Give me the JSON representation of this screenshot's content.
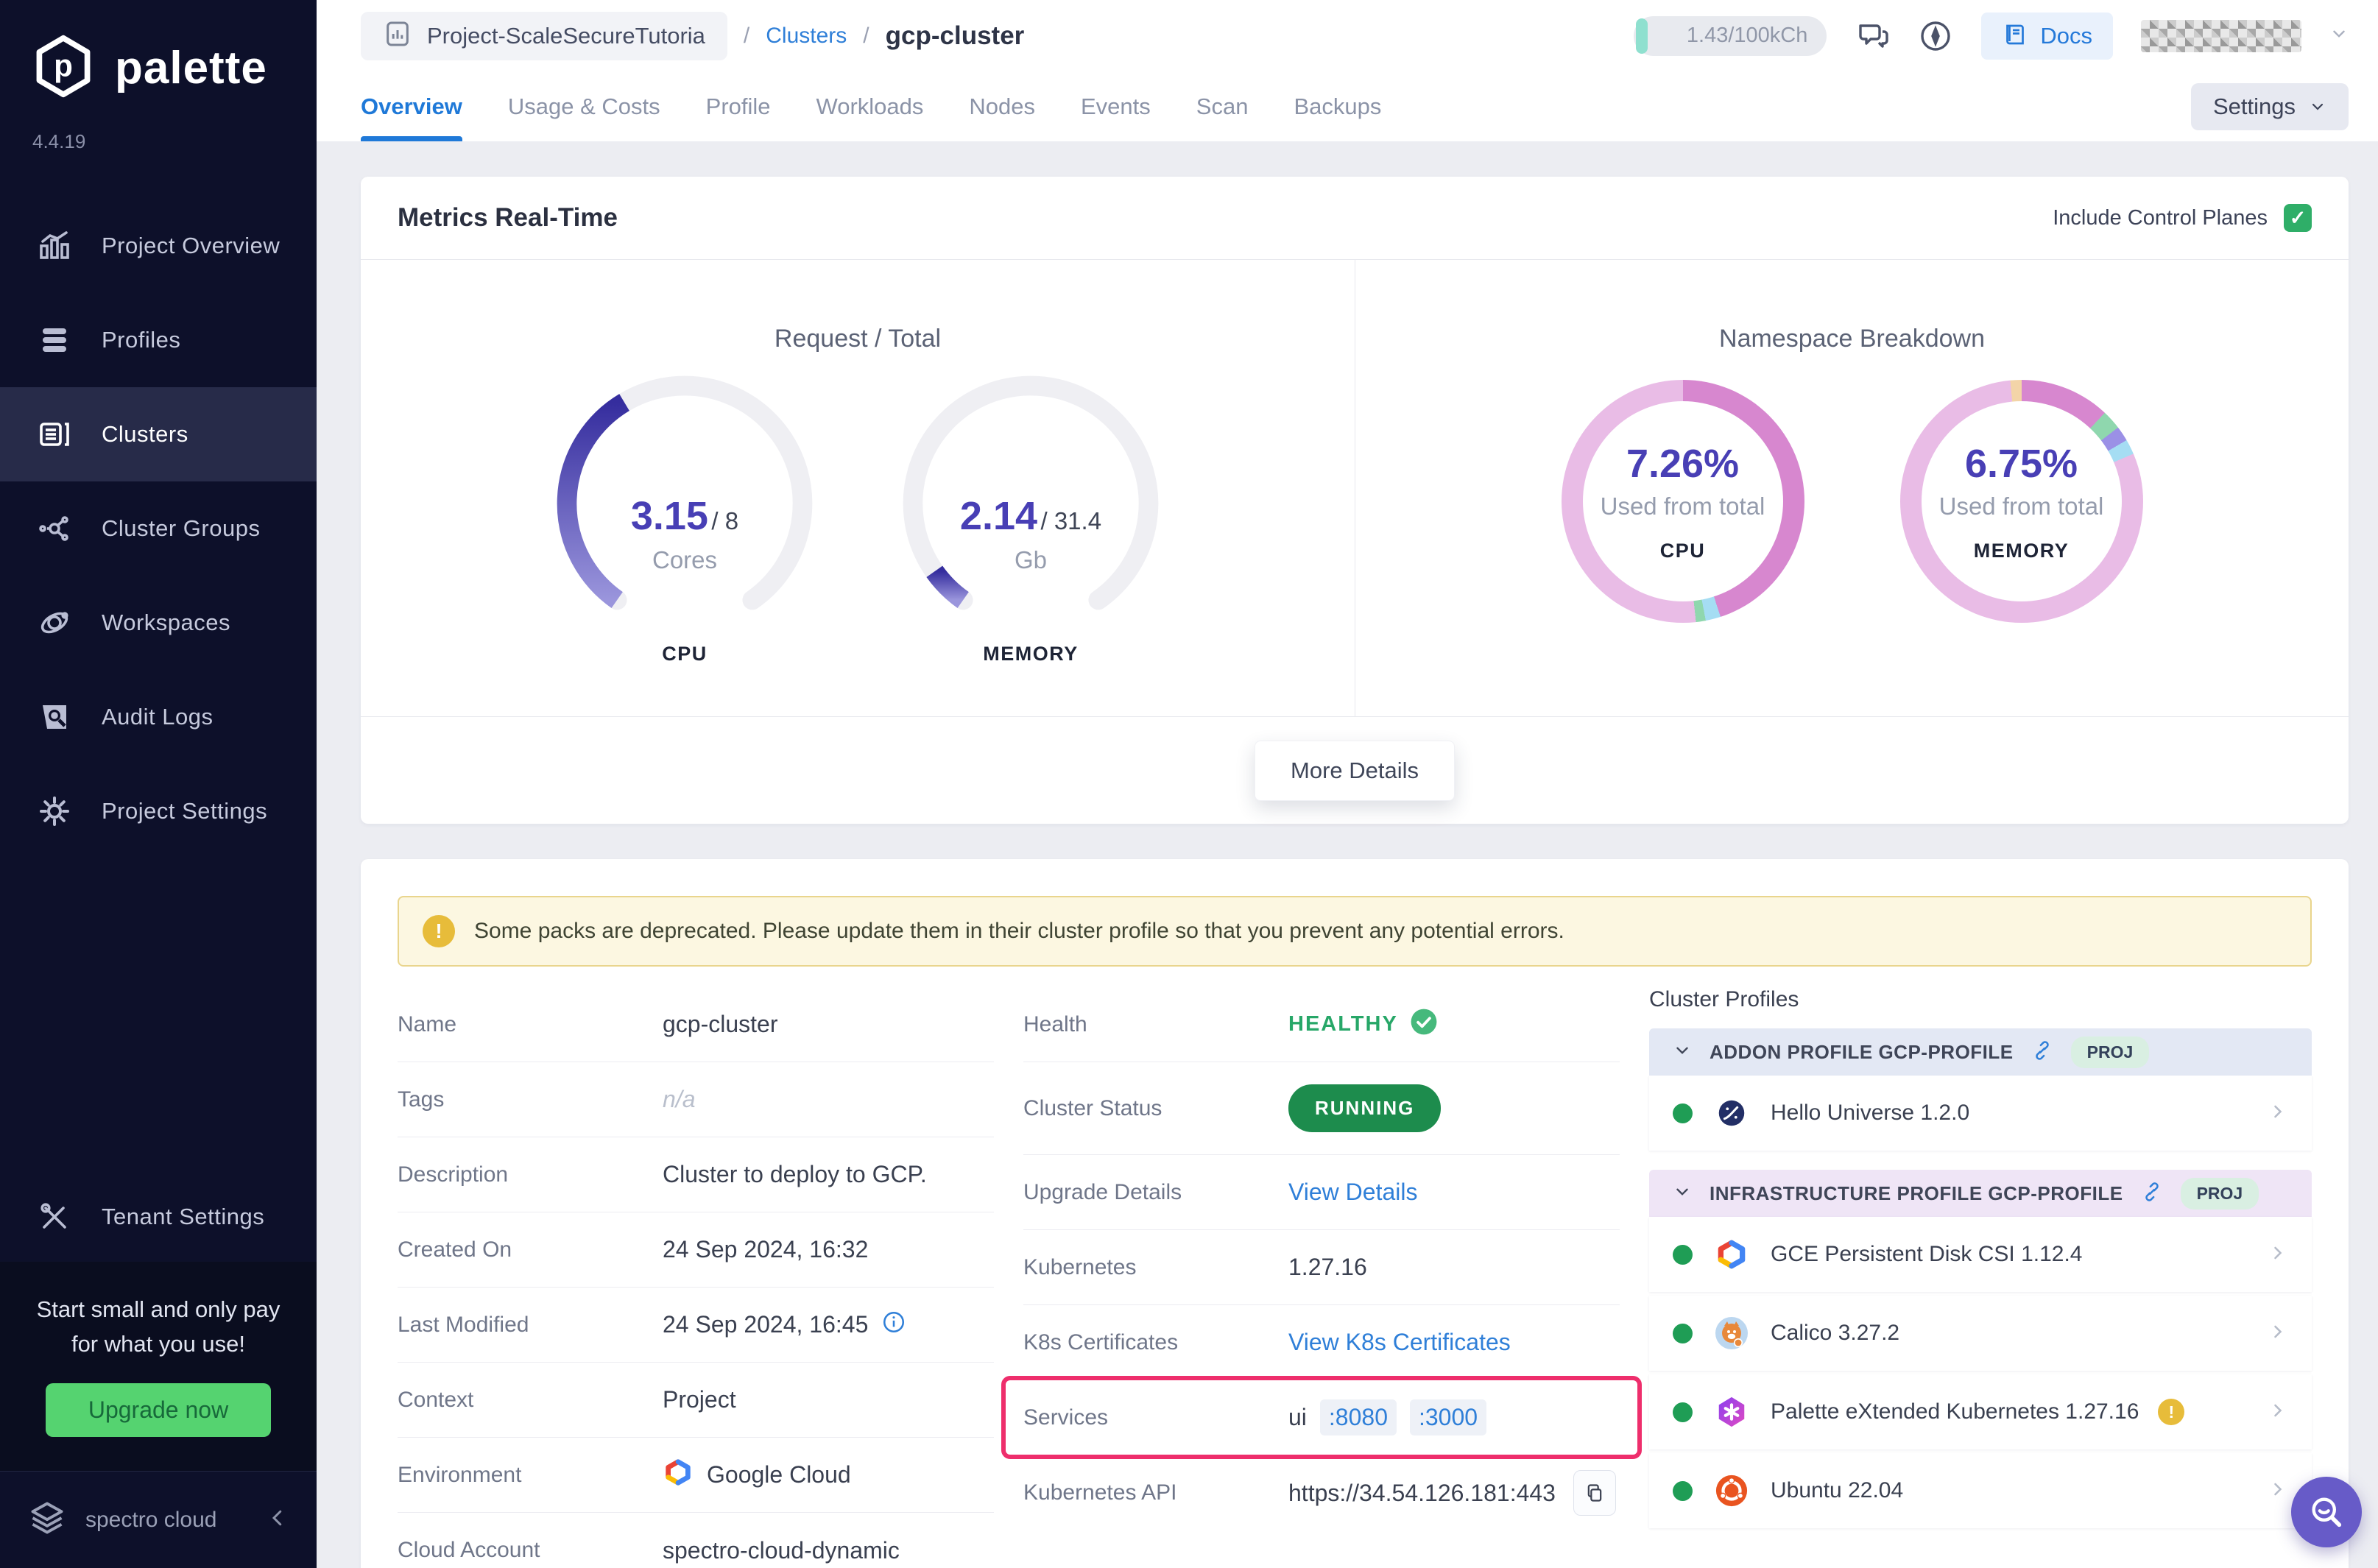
{
  "app": {
    "name": "palette",
    "version": "4.4.19",
    "brand": "spectro cloud"
  },
  "sidebar": {
    "items": [
      {
        "label": "Project Overview",
        "icon": "bar-chart-icon",
        "active": false
      },
      {
        "label": "Profiles",
        "icon": "layers-icon",
        "active": false
      },
      {
        "label": "Clusters",
        "icon": "server-icon",
        "active": true
      },
      {
        "label": "Cluster Groups",
        "icon": "network-icon",
        "active": false
      },
      {
        "label": "Workspaces",
        "icon": "orbit-icon",
        "active": false
      },
      {
        "label": "Audit Logs",
        "icon": "audit-icon",
        "active": false
      },
      {
        "label": "Project Settings",
        "icon": "gear-icon",
        "active": false
      }
    ],
    "tenant_settings": "Tenant Settings",
    "promo": {
      "line1": "Start small and only pay",
      "line2": "for what you use!",
      "button": "Upgrade now"
    }
  },
  "header": {
    "project": "Project-ScaleSecureTutoria",
    "breadcrumb_section": "Clusters",
    "breadcrumb_current": "gcp-cluster",
    "usage": "1.43/100kCh",
    "docs": "Docs"
  },
  "tabs": {
    "labels": [
      "Overview",
      "Usage & Costs",
      "Profile",
      "Workloads",
      "Nodes",
      "Events",
      "Scan",
      "Backups"
    ],
    "active": "Overview",
    "settings": "Settings"
  },
  "metrics": {
    "title": "Metrics Real-Time",
    "include_control_planes": "Include Control Planes",
    "checkbox_checked": true,
    "gauges_title": "Request / Total",
    "donuts_title": "Namespace Breakdown",
    "more_details": "More Details"
  },
  "chart_data": [
    {
      "id": "gauge-cpu",
      "type": "gauge",
      "label": "CPU",
      "value": 3.15,
      "total": 8,
      "total_text": "/ 8",
      "unit": "Cores",
      "arc_span_deg": 290,
      "track_color": "#efeff3",
      "fill_top": "#352d9e",
      "fill_bottom": "#9a95dc"
    },
    {
      "id": "gauge-mem",
      "type": "gauge",
      "label": "MEMORY",
      "value": 2.14,
      "total": 31.4,
      "total_text": "/ 31.4",
      "unit": "Gb",
      "arc_span_deg": 290,
      "track_color": "#efeff3",
      "fill_top": "#352d9e",
      "fill_bottom": "#9a95dc"
    },
    {
      "id": "donut-cpu",
      "type": "donut",
      "label": "CPU",
      "percent_text": "7.26%",
      "subtitle": "Used from total",
      "slices": [
        {
          "color": "#d787cf",
          "pct": 45
        },
        {
          "color": "#a5ddf3",
          "pct": 2
        },
        {
          "color": "#8fd7ae",
          "pct": 1.3
        },
        {
          "color": "#e9bce6",
          "pct": 51.7
        }
      ]
    },
    {
      "id": "donut-mem",
      "type": "donut",
      "label": "MEMORY",
      "percent_text": "6.75%",
      "subtitle": "Used from total",
      "slices": [
        {
          "color": "#d787cf",
          "pct": 12
        },
        {
          "color": "#8fd7ae",
          "pct": 2.6
        },
        {
          "color": "#9b90e6",
          "pct": 2
        },
        {
          "color": "#a5ddf3",
          "pct": 2
        },
        {
          "color": "#e9bce6",
          "pct": 79.9
        },
        {
          "color": "#f3d4a8",
          "pct": 1.5
        }
      ]
    }
  ],
  "details": {
    "warning": "Some packs are deprecated. Please update them in their cluster profile so that you prevent any potential errors.",
    "left_rows": [
      {
        "label": "Name",
        "value": "gcp-cluster"
      },
      {
        "label": "Tags",
        "value": "n/a"
      },
      {
        "label": "Description",
        "value": "Cluster to deploy to GCP."
      },
      {
        "label": "Created On",
        "value": "24 Sep 2024, 16:32"
      },
      {
        "label": "Last Modified",
        "value": "24 Sep 2024, 16:45"
      },
      {
        "label": "Context",
        "value": "Project"
      },
      {
        "label": "Environment",
        "value": "Google Cloud"
      },
      {
        "label": "Cloud Account",
        "value": "spectro-cloud-dynamic"
      }
    ],
    "mid": {
      "health_label": "Health",
      "health_value": "HEALTHY",
      "status_label": "Cluster Status",
      "status_value": "RUNNING",
      "upgrade_label": "Upgrade Details",
      "upgrade_value": "View Details",
      "k8s_label": "Kubernetes",
      "k8s_value": "1.27.16",
      "certs_label": "K8s Certificates",
      "certs_value": "View K8s Certificates",
      "services_label": "Services",
      "services_name": "ui",
      "services_ports": [
        ":8080",
        ":3000"
      ],
      "api_label": "Kubernetes API",
      "api_value": "https://34.54.126.181:443"
    },
    "cluster_profiles": {
      "title": "Cluster Profiles",
      "sections": [
        {
          "header": "ADDON PROFILE GCP-PROFILE",
          "badge": "PROJ",
          "rows": [
            {
              "name": "Hello Universe 1.2.0",
              "warning": false
            }
          ]
        },
        {
          "header": "INFRASTRUCTURE PROFILE GCP-PROFILE",
          "badge": "PROJ",
          "rows": [
            {
              "name": "GCE Persistent Disk CSI 1.12.4",
              "warning": false
            },
            {
              "name": "Calico 3.27.2",
              "warning": false
            },
            {
              "name": "Palette eXtended Kubernetes 1.27.16",
              "warning": true
            },
            {
              "name": "Ubuntu 22.04",
              "warning": false
            }
          ]
        }
      ]
    }
  },
  "colors": {
    "accent_blue": "#1f79d8",
    "indigo": "#483fb5",
    "green": "#1d8c4d",
    "highlight_pink": "#ee2e6c",
    "warning_yellow": "#e7bc3a",
    "sidebar_bg": "#0d102a",
    "content_bg": "#ecedf2"
  }
}
